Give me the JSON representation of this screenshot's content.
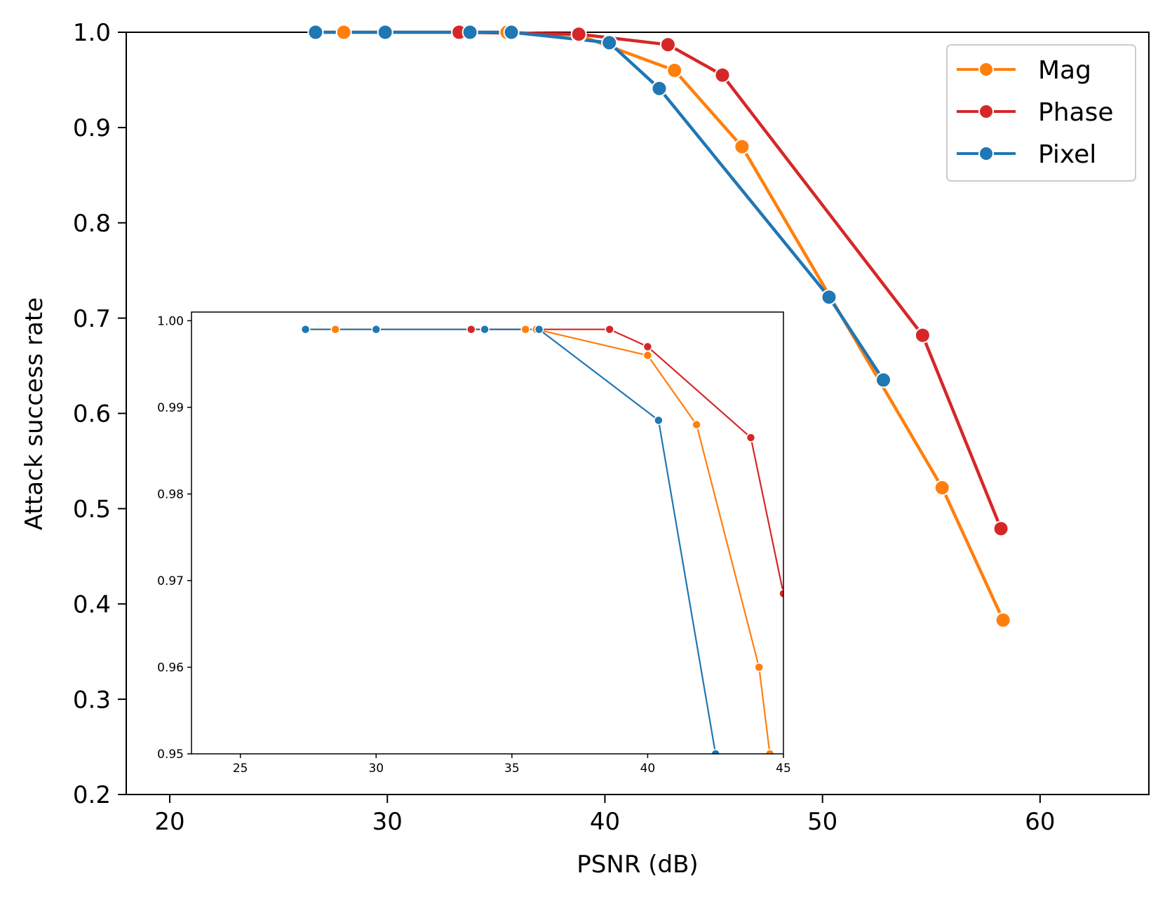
{
  "chart_data": [
    {
      "id": "main",
      "type": "line",
      "title": "",
      "xlabel": "PSNR (dB)",
      "ylabel": "Attack success rate",
      "xlim": [
        18,
        65
      ],
      "ylim": [
        0.2,
        1.0
      ],
      "xticks": [
        20,
        30,
        40,
        50,
        60
      ],
      "yticks": [
        0.2,
        0.3,
        0.4,
        0.5,
        0.6,
        0.7,
        0.8,
        0.9,
        1.0
      ],
      "xtick_labels": [
        "20",
        "30",
        "40",
        "50",
        "60"
      ],
      "ytick_labels": [
        "0.2",
        "0.3",
        "0.4",
        "0.5",
        "0.6",
        "0.7",
        "0.8",
        "0.9",
        "1.0"
      ],
      "grid": false,
      "legend_position": "top-right",
      "series": [
        {
          "name": "Mag",
          "color": "#ff7f0e",
          "x": [
            26.7,
            28.0,
            35.5,
            38.8,
            43.2,
            46.3,
            55.5,
            58.3
          ],
          "y": [
            1.0,
            1.0,
            1.0,
            0.997,
            0.96,
            0.88,
            0.522,
            0.383
          ]
        },
        {
          "name": "Phase",
          "color": "#d62728",
          "x": [
            33.3,
            38.8,
            42.9,
            45.4,
            54.6,
            58.2
          ],
          "y": [
            1.0,
            0.998,
            0.987,
            0.955,
            0.682,
            0.479
          ]
        },
        {
          "name": "Pixel",
          "color": "#1f77b4",
          "x": [
            26.7,
            29.9,
            33.8,
            35.7,
            40.2,
            42.5,
            50.3,
            52.8
          ],
          "y": [
            1.0,
            1.0,
            1.0,
            1.0,
            0.989,
            0.941,
            0.722,
            0.635
          ]
        }
      ]
    },
    {
      "id": "inset",
      "type": "line",
      "title": "",
      "xlabel": "",
      "ylabel": "",
      "xlim": [
        23.2,
        45.0
      ],
      "ylim": [
        0.95,
        1.001
      ],
      "xticks": [
        25,
        30,
        35,
        40,
        45
      ],
      "yticks": [
        0.95,
        0.96,
        0.97,
        0.98,
        0.99,
        1.0
      ],
      "xtick_labels": [
        "25",
        "30",
        "35",
        "40",
        "45"
      ],
      "ytick_labels": [
        "0.95",
        "0.96",
        "0.97",
        "0.98",
        "0.99",
        "1.00"
      ],
      "grid": false,
      "series": [
        {
          "name": "Mag",
          "color": "#ff7f0e",
          "x": [
            27.4,
            28.5,
            35.5,
            35.9,
            40.0,
            41.8,
            44.1,
            44.5
          ],
          "y": [
            0.999,
            0.999,
            0.999,
            0.999,
            0.996,
            0.988,
            0.96,
            0.95
          ]
        },
        {
          "name": "Phase",
          "color": "#d62728",
          "x": [
            33.5,
            38.6,
            40.0,
            43.8,
            45.0
          ],
          "y": [
            0.999,
            0.999,
            0.997,
            0.9865,
            0.9685
          ]
        },
        {
          "name": "Pixel",
          "color": "#1f77b4",
          "x": [
            27.4,
            30.0,
            34.0,
            36.0,
            40.4,
            42.5
          ],
          "y": [
            0.999,
            0.999,
            0.999,
            0.999,
            0.9885,
            0.95
          ]
        }
      ]
    }
  ]
}
